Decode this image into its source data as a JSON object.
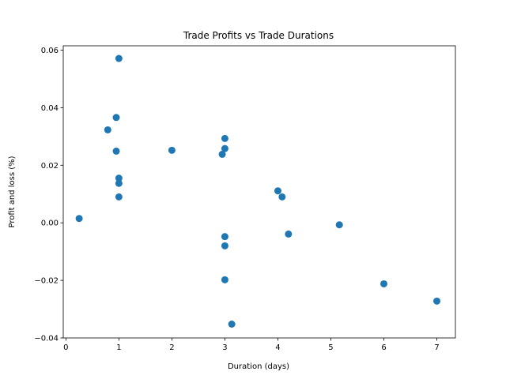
{
  "chart_data": {
    "type": "scatter",
    "title": "Trade Profits vs Trade Durations",
    "xlabel": "Duration (days)",
    "ylabel": "Profit and loss (%)",
    "xlim": [
      -0.05,
      7.35
    ],
    "ylim": [
      -0.04,
      0.0615
    ],
    "xticks": [
      0,
      1,
      2,
      3,
      4,
      5,
      6,
      7
    ],
    "xtick_labels": [
      "0",
      "1",
      "2",
      "3",
      "4",
      "5",
      "6",
      "7"
    ],
    "yticks": [
      -0.04,
      -0.02,
      0.0,
      0.02,
      0.04,
      0.06
    ],
    "ytick_labels": [
      "−0.04",
      "−0.02",
      "0.00",
      "0.02",
      "0.04",
      "0.06"
    ],
    "grid": false,
    "marker_color": "#1f77b4",
    "points": [
      {
        "x": 0.25,
        "y": 0.0015
      },
      {
        "x": 0.79,
        "y": 0.0323
      },
      {
        "x": 0.95,
        "y": 0.0366
      },
      {
        "x": 0.95,
        "y": 0.0249
      },
      {
        "x": 1.0,
        "y": 0.0571
      },
      {
        "x": 1.0,
        "y": 0.0155
      },
      {
        "x": 1.0,
        "y": 0.0137
      },
      {
        "x": 1.0,
        "y": 0.009
      },
      {
        "x": 2.0,
        "y": 0.0252
      },
      {
        "x": 2.95,
        "y": 0.0238
      },
      {
        "x": 3.0,
        "y": 0.0293
      },
      {
        "x": 3.0,
        "y": 0.0258
      },
      {
        "x": 3.0,
        "y": -0.0048
      },
      {
        "x": 3.0,
        "y": -0.008
      },
      {
        "x": 3.0,
        "y": -0.0198
      },
      {
        "x": 3.13,
        "y": -0.0352
      },
      {
        "x": 4.0,
        "y": 0.0111
      },
      {
        "x": 4.08,
        "y": 0.009
      },
      {
        "x": 4.2,
        "y": -0.0039
      },
      {
        "x": 5.16,
        "y": -0.0007
      },
      {
        "x": 6.0,
        "y": -0.0212
      },
      {
        "x": 7.0,
        "y": -0.0272
      }
    ]
  }
}
